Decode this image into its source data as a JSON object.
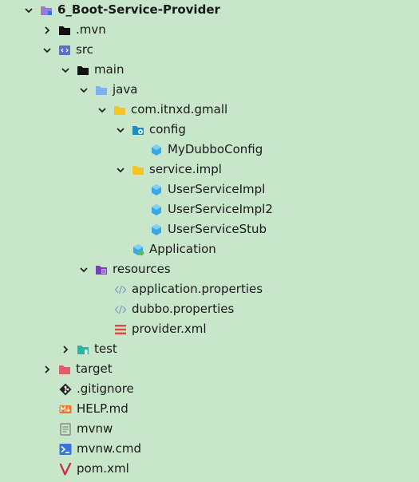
{
  "tree": {
    "root": "6_Boot-Service-Provider",
    "mvn": ".mvn",
    "src": "src",
    "main": "main",
    "java": "java",
    "pkg": "com.itnxd.gmall",
    "config": "config",
    "my_dubbo_config": "MyDubboConfig",
    "service_impl": "service.impl",
    "user_service_impl": "UserServiceImpl",
    "user_service_impl2": "UserServiceImpl2",
    "user_service_stub": "UserServiceStub",
    "application": "Application",
    "resources": "resources",
    "application_properties": "application.properties",
    "dubbo_properties": "dubbo.properties",
    "provider_xml": "provider.xml",
    "test": "test",
    "target": "target",
    "gitignore": ".gitignore",
    "help_md": "HELP.md",
    "mvnw": "mvnw",
    "mvnw_cmd": "mvnw.cmd",
    "pom_xml": "pom.xml"
  },
  "icons": {
    "folder_module": "module-folder-icon",
    "folder_plain": "folder-icon",
    "folder_source": "source-folder-icon",
    "package": "package-icon",
    "java_class": "java-class-icon",
    "spring_boot_class": "spring-application-icon",
    "properties": "properties-file-icon",
    "xml": "xml-file-icon",
    "test_folder": "test-folder-icon",
    "excluded_folder": "excluded-folder-icon",
    "git": "git-icon",
    "markdown": "markdown-icon",
    "text": "text-file-icon",
    "cmd": "cmd-icon",
    "maven": "maven-icon"
  }
}
